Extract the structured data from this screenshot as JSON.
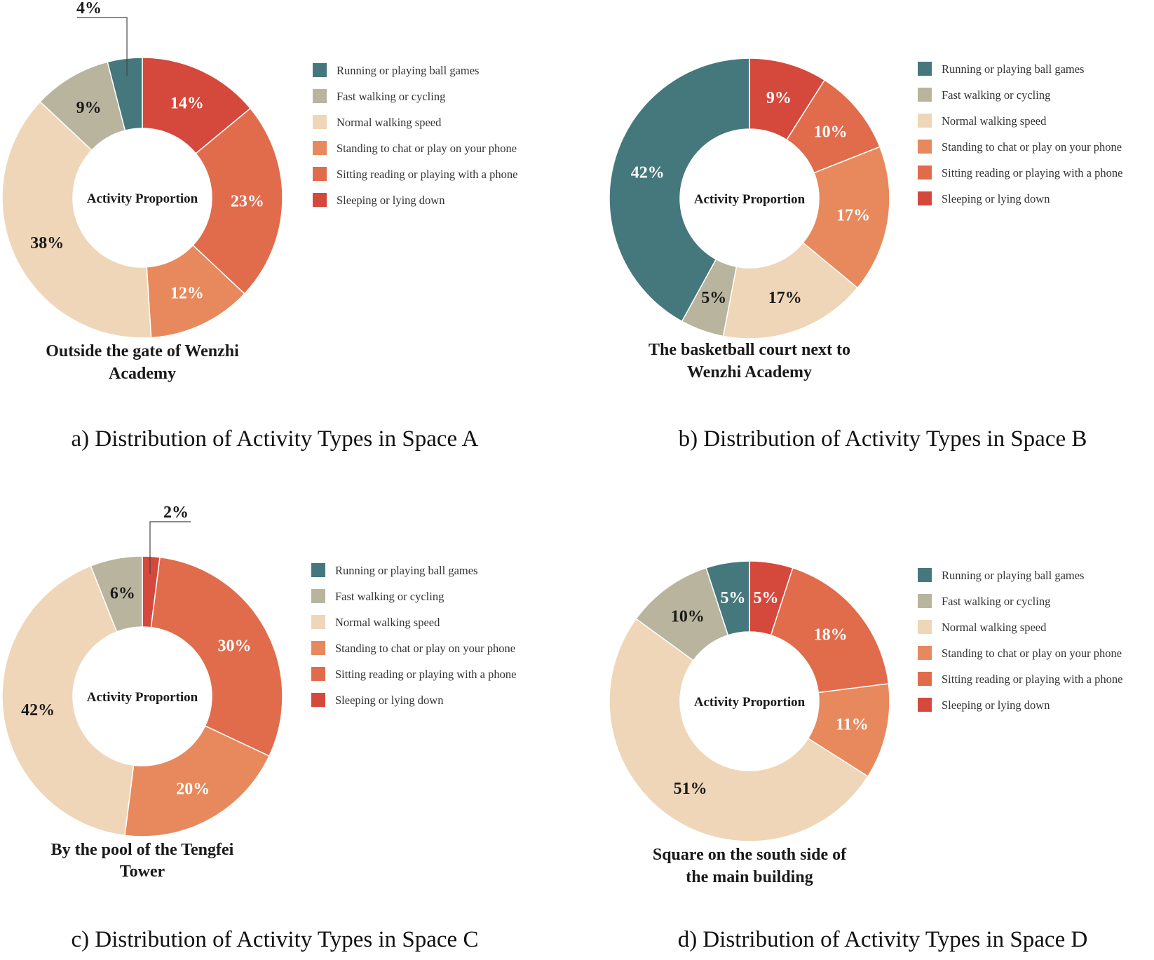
{
  "figure": {
    "colors": {
      "Running or playing ball games": "#45787d",
      "Fast walking or cycling": "#b8b49e",
      "Normal walking speed": "#efd6b8",
      "Standing to chat or play on your phone": "#e7895c",
      "Sitting reading or playing with a phone": "#e06c4c",
      "Sleeping or lying down": "#d5493c"
    },
    "legend": [
      "Running or playing ball games",
      "Fast walking or cycling",
      "Normal walking speed",
      "Standing to chat or play on your phone",
      "Sitting reading or playing with a phone",
      "Sleeping or lying down"
    ]
  },
  "chart_data": [
    {
      "type": "pie",
      "donut": true,
      "center_label": "Activity Proportion",
      "location": [
        "Outside the gate of Wenzhi",
        "Academy"
      ],
      "caption": "a) Distribution of Activity Types in Space A",
      "slices": [
        {
          "label": "Sleeping or lying down",
          "value": 14,
          "text": "14%"
        },
        {
          "label": "Sitting reading or playing with a phone",
          "value": 23,
          "text": "23%"
        },
        {
          "label": "Standing to chat or play on your phone",
          "value": 12,
          "text": "12%"
        },
        {
          "label": "Normal walking speed",
          "value": 38,
          "text": "38%"
        },
        {
          "label": "Fast walking or cycling",
          "value": 9,
          "text": "9%"
        },
        {
          "label": "Running or playing ball games",
          "value": 4,
          "text": "4%"
        }
      ]
    },
    {
      "type": "pie",
      "donut": true,
      "center_label": "Activity Proportion",
      "location": [
        "The basketball court next to",
        "Wenzhi Academy"
      ],
      "caption": "b) Distribution of Activity Types in Space B",
      "slices": [
        {
          "label": "Sleeping or lying down",
          "value": 9,
          "text": "9%"
        },
        {
          "label": "Sitting reading or playing with a phone",
          "value": 10,
          "text": "10%"
        },
        {
          "label": "Standing to chat or play on your phone",
          "value": 17,
          "text": "17%"
        },
        {
          "label": "Normal walking speed",
          "value": 17,
          "text": "17%"
        },
        {
          "label": "Fast walking or cycling",
          "value": 5,
          "text": "5%"
        },
        {
          "label": "Running or playing ball games",
          "value": 42,
          "text": "42%"
        }
      ]
    },
    {
      "type": "pie",
      "donut": true,
      "center_label": "Activity Proportion",
      "location": [
        "By the pool of the Tengfei",
        "Tower"
      ],
      "caption": "c) Distribution of Activity Types in Space C",
      "slices": [
        {
          "label": "Sleeping or lying down",
          "value": 2,
          "text": "2%"
        },
        {
          "label": "Sitting reading or playing with a phone",
          "value": 30,
          "text": "30%"
        },
        {
          "label": "Standing to chat or play on your phone",
          "value": 20,
          "text": "20%"
        },
        {
          "label": "Normal walking speed",
          "value": 42,
          "text": "42%"
        },
        {
          "label": "Fast walking or cycling",
          "value": 6,
          "text": "6%"
        }
      ]
    },
    {
      "type": "pie",
      "donut": true,
      "center_label": "Activity Proportion",
      "location": [
        "Square on the south side of",
        "the main building"
      ],
      "caption": "d) Distribution of Activity Types in Space D",
      "slices": [
        {
          "label": "Sleeping or lying down",
          "value": 5,
          "text": "5%"
        },
        {
          "label": "Sitting reading or playing with a phone",
          "value": 18,
          "text": "18%"
        },
        {
          "label": "Standing to chat or play on your phone",
          "value": 11,
          "text": "11%"
        },
        {
          "label": "Normal walking speed",
          "value": 51,
          "text": "51%"
        },
        {
          "label": "Fast walking or cycling",
          "value": 10,
          "text": "10%"
        },
        {
          "label": "Running or playing ball games",
          "value": 5,
          "text": "5%"
        }
      ]
    }
  ]
}
